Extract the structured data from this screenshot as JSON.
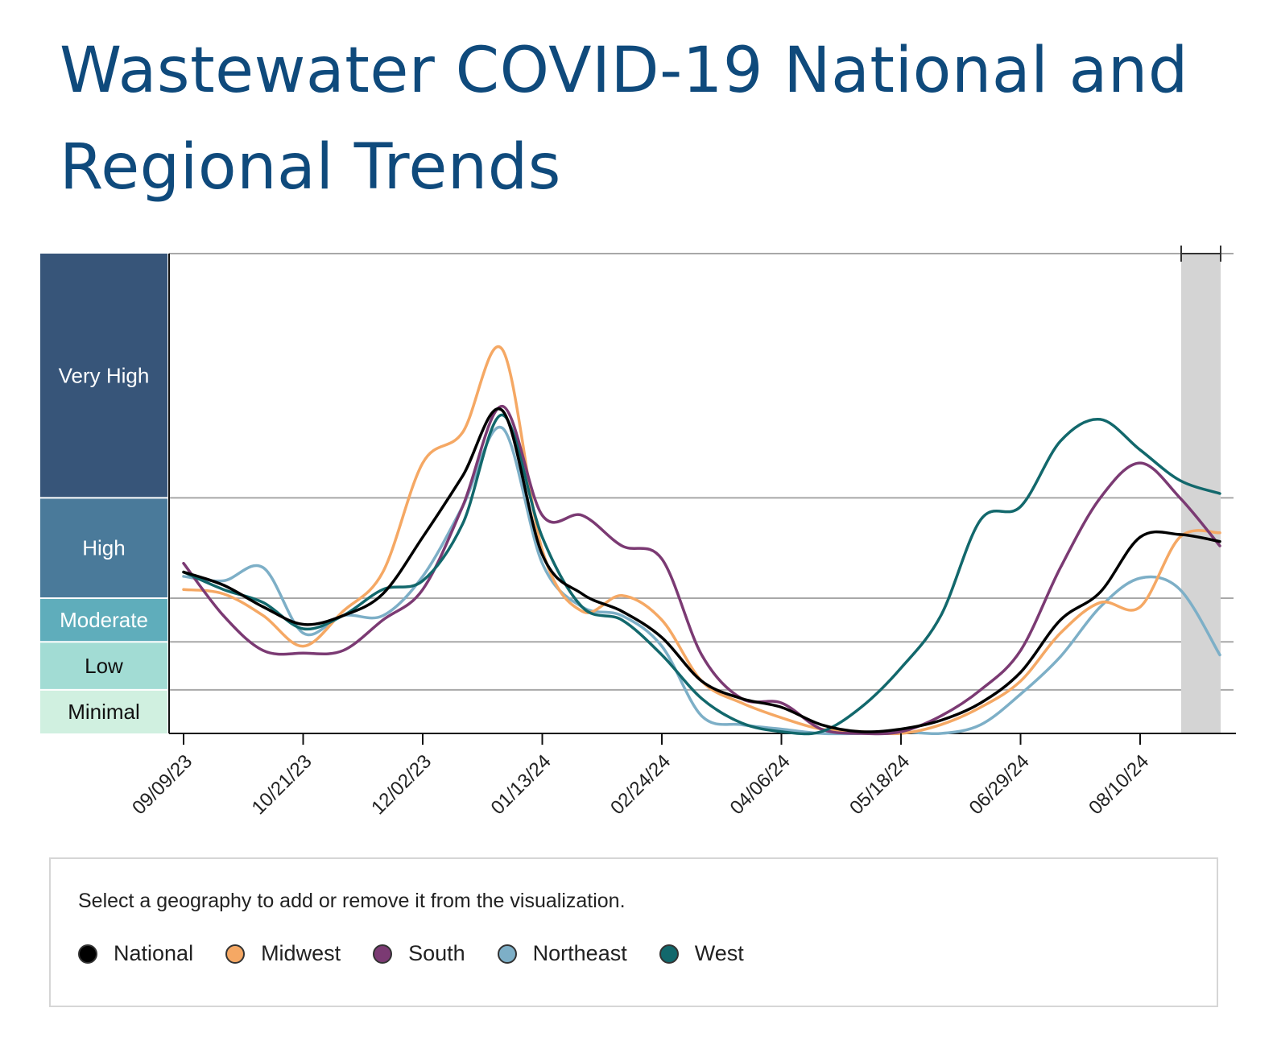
{
  "title": "Wastewater COVID-19 National and Regional Trends",
  "legend": {
    "instruction": "Select a geography to add or remove it from the visualization.",
    "items": [
      {
        "label": "National",
        "color": "#000000"
      },
      {
        "label": "Midwest",
        "color": "#f5a864"
      },
      {
        "label": "South",
        "color": "#7b3a73"
      },
      {
        "label": "Northeast",
        "color": "#7dafc7"
      },
      {
        "label": "West",
        "color": "#12686c"
      }
    ]
  },
  "chart_data": {
    "type": "line",
    "levels": [
      {
        "label": "Very High",
        "color": "#375579"
      },
      {
        "label": "High",
        "color": "#4a7a9a"
      },
      {
        "label": "Moderate",
        "color": "#5fadbb"
      },
      {
        "label": "Low",
        "color": "#a2dcd4"
      },
      {
        "label": "Minimal",
        "color": "#d0f0e0"
      }
    ],
    "x_ticks": [
      "09/09/23",
      "10/21/23",
      "12/02/23",
      "01/13/24",
      "02/24/24",
      "04/06/24",
      "05/18/24",
      "06/29/24",
      "08/10/24"
    ],
    "x": [
      "09/09/23",
      "09/23/23",
      "10/07/23",
      "10/21/23",
      "11/04/23",
      "11/18/23",
      "12/02/23",
      "12/16/23",
      "12/30/23",
      "01/13/24",
      "01/27/24",
      "02/10/24",
      "02/24/24",
      "03/09/24",
      "03/23/24",
      "04/06/24",
      "04/20/24",
      "05/04/24",
      "05/18/24",
      "06/01/24",
      "06/15/24",
      "06/29/24",
      "07/13/24",
      "07/27/24",
      "08/10/24",
      "08/24/24",
      "09/07/24"
    ],
    "series": [
      {
        "name": "National",
        "color": "#000000",
        "values": [
          1.85,
          1.7,
          1.45,
          1.25,
          1.35,
          1.6,
          2.25,
          2.95,
          3.7,
          2.05,
          1.6,
          1.4,
          1.1,
          0.6,
          0.4,
          0.3,
          0.1,
          0.02,
          0.05,
          0.15,
          0.35,
          0.7,
          1.3,
          1.62,
          2.25,
          2.28,
          2.2
        ]
      },
      {
        "name": "Midwest",
        "color": "#f5a864",
        "values": [
          1.65,
          1.6,
          1.35,
          1.0,
          1.4,
          1.85,
          3.1,
          3.45,
          4.4,
          2.1,
          1.4,
          1.58,
          1.3,
          0.6,
          0.35,
          0.18,
          0.05,
          0.02,
          0.0,
          0.1,
          0.3,
          0.6,
          1.15,
          1.5,
          1.45,
          2.25,
          2.3
        ]
      },
      {
        "name": "South",
        "color": "#7b3a73",
        "values": [
          1.95,
          1.35,
          0.95,
          0.92,
          0.95,
          1.3,
          1.65,
          2.6,
          3.75,
          2.5,
          2.5,
          2.15,
          2.0,
          0.9,
          0.4,
          0.35,
          0.05,
          0.0,
          0.02,
          0.2,
          0.5,
          0.95,
          1.9,
          2.7,
          3.1,
          2.7,
          2.15
        ]
      },
      {
        "name": "Northeast",
        "color": "#7dafc7",
        "values": [
          1.8,
          1.75,
          1.9,
          1.15,
          1.35,
          1.35,
          1.8,
          2.6,
          3.5,
          1.95,
          1.45,
          1.35,
          1.0,
          0.2,
          0.1,
          0.05,
          0.0,
          0.0,
          0.02,
          0.0,
          0.1,
          0.45,
          0.88,
          1.45,
          1.78,
          1.65,
          0.9
        ]
      },
      {
        "name": "West",
        "color": "#12686c",
        "values": [
          1.85,
          1.65,
          1.5,
          1.2,
          1.35,
          1.65,
          1.75,
          2.4,
          3.65,
          2.25,
          1.45,
          1.3,
          0.9,
          0.4,
          0.12,
          0.02,
          0.02,
          0.3,
          0.75,
          1.35,
          2.45,
          2.6,
          3.35,
          3.6,
          3.25,
          2.9,
          2.75
        ]
      }
    ],
    "y_levels_note": "",
    "ylim": [
      0,
      5.5
    ]
  }
}
